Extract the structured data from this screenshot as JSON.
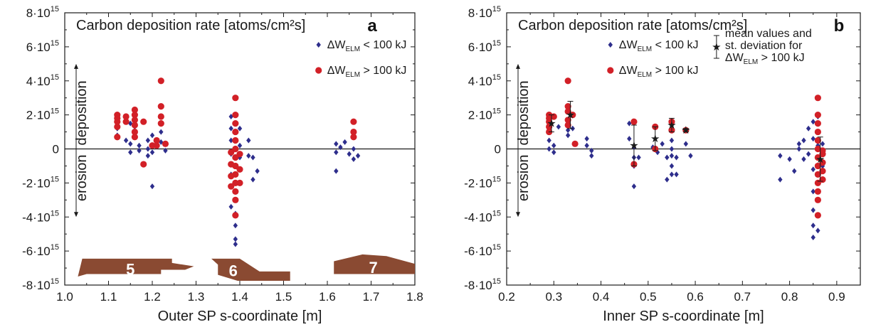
{
  "colors": {
    "blue": "#2e2e8c",
    "red": "#d22027",
    "tile": "#8a4a32",
    "axis": "#1a1a1a"
  },
  "chart_data": [
    {
      "type": "scatter",
      "panel_label": "a",
      "title": "Carbon deposition rate [atoms/cm²s]",
      "xlabel": "Outer SP s-coordinate [m]",
      "xlim": [
        1.0,
        1.8
      ],
      "ylim": [
        -8,
        8
      ],
      "y_unit_note": "y values in units of 10^15",
      "xticks": [
        "1.0",
        "1.1",
        "1.2",
        "1.3",
        "1.4",
        "1.5",
        "1.6",
        "1.7",
        "1.8"
      ],
      "yticks": [
        "-8·10",
        "-6·10",
        "-4·10",
        "-2·10",
        "0",
        "2·10",
        "4·10",
        "6·10",
        "8·10"
      ],
      "ytick_values": [
        -8,
        -6,
        -4,
        -2,
        0,
        2,
        4,
        6,
        8
      ],
      "arrow_labels": {
        "up": "deposition",
        "down": "erosion"
      },
      "tile_labels": [
        "5",
        "6",
        "7"
      ],
      "series": [
        {
          "name": "ΔW_ELM < 100 kJ",
          "legend_main": "ΔW",
          "legend_sub": "ELM",
          "legend_rest": " < 100 kJ",
          "color": "blue",
          "marker": "diamond",
          "points": [
            [
              1.12,
              0.8
            ],
            [
              1.12,
              1.2
            ],
            [
              1.12,
              1.7
            ],
            [
              1.14,
              0.5
            ],
            [
              1.15,
              1.5
            ],
            [
              1.15,
              0.3
            ],
            [
              1.15,
              -0.2
            ],
            [
              1.16,
              1.3
            ],
            [
              1.16,
              0.9
            ],
            [
              1.17,
              0.2
            ],
            [
              1.17,
              -0.1
            ],
            [
              1.18,
              1.6
            ],
            [
              1.19,
              0.5
            ],
            [
              1.19,
              0.0
            ],
            [
              1.19,
              -0.4
            ],
            [
              1.2,
              0.8
            ],
            [
              1.2,
              -0.2
            ],
            [
              1.2,
              -2.2
            ],
            [
              1.22,
              1.0
            ],
            [
              1.22,
              0.4
            ],
            [
              1.23,
              -0.1
            ],
            [
              1.38,
              1.9
            ],
            [
              1.38,
              1.2
            ],
            [
              1.38,
              0.5
            ],
            [
              1.38,
              -0.3
            ],
            [
              1.38,
              -1.5
            ],
            [
              1.38,
              -3.4
            ],
            [
              1.39,
              -1.0
            ],
            [
              1.39,
              -2.5
            ],
            [
              1.39,
              -3.8
            ],
            [
              1.39,
              -4.5
            ],
            [
              1.39,
              -5.3
            ],
            [
              1.39,
              -5.6
            ],
            [
              1.4,
              1.2
            ],
            [
              1.4,
              0.2
            ],
            [
              1.4,
              -0.5
            ],
            [
              1.42,
              0.5
            ],
            [
              1.42,
              -0.4
            ],
            [
              1.43,
              -0.5
            ],
            [
              1.44,
              -1.3
            ],
            [
              1.43,
              -1.8
            ],
            [
              1.62,
              0.3
            ],
            [
              1.62,
              -0.2
            ],
            [
              1.62,
              -1.3
            ],
            [
              1.63,
              0.1
            ],
            [
              1.64,
              0.4
            ],
            [
              1.65,
              -0.3
            ],
            [
              1.66,
              -0.6
            ],
            [
              1.66,
              0.0
            ],
            [
              1.67,
              -0.4
            ]
          ]
        },
        {
          "name": "ΔW_ELM > 100 kJ",
          "legend_main": "ΔW",
          "legend_sub": "ELM",
          "legend_rest": " > 100 kJ",
          "color": "red",
          "marker": "circle",
          "points": [
            [
              1.12,
              2.0
            ],
            [
              1.12,
              1.8
            ],
            [
              1.12,
              1.6
            ],
            [
              1.12,
              1.3
            ],
            [
              1.12,
              0.7
            ],
            [
              1.14,
              1.9
            ],
            [
              1.14,
              1.6
            ],
            [
              1.16,
              2.3
            ],
            [
              1.16,
              2.0
            ],
            [
              1.16,
              1.7
            ],
            [
              1.16,
              1.4
            ],
            [
              1.16,
              1.0
            ],
            [
              1.16,
              0.7
            ],
            [
              1.18,
              1.6
            ],
            [
              1.18,
              -0.9
            ],
            [
              1.2,
              0.2
            ],
            [
              1.21,
              0.5
            ],
            [
              1.21,
              0.2
            ],
            [
              1.22,
              4.0
            ],
            [
              1.22,
              2.5
            ],
            [
              1.22,
              1.9
            ],
            [
              1.22,
              1.5
            ],
            [
              1.23,
              0.3
            ],
            [
              1.39,
              3.0
            ],
            [
              1.39,
              2.0
            ],
            [
              1.39,
              1.5
            ],
            [
              1.39,
              1.0
            ],
            [
              1.39,
              0.5
            ],
            [
              1.39,
              0.0
            ],
            [
              1.39,
              -0.5
            ],
            [
              1.39,
              -1.0
            ],
            [
              1.39,
              -1.5
            ],
            [
              1.39,
              -2.0
            ],
            [
              1.39,
              -2.5
            ],
            [
              1.39,
              -3.0
            ],
            [
              1.39,
              -3.9
            ],
            [
              1.38,
              -0.2
            ],
            [
              1.38,
              -0.9
            ],
            [
              1.38,
              -1.6
            ],
            [
              1.38,
              -2.2
            ],
            [
              1.4,
              -0.3
            ],
            [
              1.4,
              -1.2
            ],
            [
              1.4,
              -2.0
            ],
            [
              1.66,
              1.6
            ],
            [
              1.66,
              1.0
            ],
            [
              1.66,
              0.7
            ]
          ]
        }
      ]
    },
    {
      "type": "scatter",
      "panel_label": "b",
      "title": "Carbon deposition rate [atoms/cm²s]",
      "xlabel": "Inner SP s-coordinate [m]",
      "xlim": [
        0.2,
        0.95
      ],
      "ylim": [
        -8,
        8
      ],
      "y_unit_note": "y values in units of 10^15",
      "xticks": [
        "0.2",
        "0.3",
        "0.4",
        "0.5",
        "0.6",
        "0.7",
        "0.8",
        "0.9"
      ],
      "yticks": [
        "-8·10",
        "-6·10",
        "-4·10",
        "-2·10",
        "0",
        "2·10",
        "4·10",
        "6·10",
        "8·10"
      ],
      "ytick_values": [
        -8,
        -6,
        -4,
        -2,
        0,
        2,
        4,
        6,
        8
      ],
      "arrow_labels": {
        "up": "deposition",
        "down": "erosion"
      },
      "series": [
        {
          "name": "ΔW_ELM < 100 kJ",
          "legend_main": "ΔW",
          "legend_sub": "ELM",
          "legend_rest": " < 100 kJ",
          "color": "blue",
          "marker": "diamond",
          "points": [
            [
              0.29,
              1.0
            ],
            [
              0.29,
              0.5
            ],
            [
              0.29,
              0.0
            ],
            [
              0.3,
              -0.2
            ],
            [
              0.3,
              0.2
            ],
            [
              0.31,
              1.3
            ],
            [
              0.33,
              1.1
            ],
            [
              0.33,
              0.8
            ],
            [
              0.34,
              1.2
            ],
            [
              0.37,
              0.6
            ],
            [
              0.37,
              0.2
            ],
            [
              0.38,
              -0.1
            ],
            [
              0.38,
              -0.4
            ],
            [
              0.46,
              1.5
            ],
            [
              0.46,
              0.6
            ],
            [
              0.47,
              0.1
            ],
            [
              0.47,
              -0.5
            ],
            [
              0.47,
              -1.0
            ],
            [
              0.47,
              -2.2
            ],
            [
              0.48,
              -0.5
            ],
            [
              0.51,
              0.1
            ],
            [
              0.52,
              -0.2
            ],
            [
              0.53,
              0.3
            ],
            [
              0.54,
              -0.5
            ],
            [
              0.54,
              -1.8
            ],
            [
              0.55,
              -1.5
            ],
            [
              0.55,
              -1.0
            ],
            [
              0.55,
              -0.4
            ],
            [
              0.55,
              0.0
            ],
            [
              0.55,
              0.5
            ],
            [
              0.56,
              -1.5
            ],
            [
              0.56,
              -0.5
            ],
            [
              0.58,
              0.3
            ],
            [
              0.59,
              -0.4
            ],
            [
              0.78,
              -0.4
            ],
            [
              0.78,
              -1.8
            ],
            [
              0.8,
              -0.6
            ],
            [
              0.81,
              -1.3
            ],
            [
              0.82,
              0.0
            ],
            [
              0.82,
              0.3
            ],
            [
              0.83,
              0.5
            ],
            [
              0.83,
              -0.6
            ],
            [
              0.84,
              1.2
            ],
            [
              0.84,
              -0.3
            ],
            [
              0.85,
              1.6
            ],
            [
              0.85,
              0.6
            ],
            [
              0.85,
              -1.2
            ],
            [
              0.85,
              -2.5
            ],
            [
              0.85,
              -3.6
            ],
            [
              0.85,
              -4.5
            ],
            [
              0.85,
              -5.2
            ],
            [
              0.86,
              1.9
            ],
            [
              0.86,
              0.2
            ],
            [
              0.86,
              -1.0
            ],
            [
              0.86,
              -3.0
            ],
            [
              0.86,
              -4.8
            ],
            [
              0.87,
              0.3
            ],
            [
              0.87,
              -1.0
            ]
          ]
        },
        {
          "name": "ΔW_ELM > 100 kJ",
          "legend_main": "ΔW",
          "legend_sub": "ELM",
          "legend_rest": " > 100 kJ",
          "color": "red",
          "marker": "circle",
          "points": [
            [
              0.29,
              2.0
            ],
            [
              0.29,
              1.8
            ],
            [
              0.29,
              1.6
            ],
            [
              0.29,
              1.3
            ],
            [
              0.29,
              1.0
            ],
            [
              0.3,
              1.9
            ],
            [
              0.33,
              4.0
            ],
            [
              0.33,
              2.5
            ],
            [
              0.33,
              2.2
            ],
            [
              0.33,
              1.7
            ],
            [
              0.33,
              1.4
            ],
            [
              0.34,
              2.0
            ],
            [
              0.345,
              0.3
            ],
            [
              0.47,
              1.6
            ],
            [
              0.47,
              -0.9
            ],
            [
              0.515,
              1.3
            ],
            [
              0.515,
              0.0
            ],
            [
              0.55,
              1.6
            ],
            [
              0.55,
              1.1
            ],
            [
              0.58,
              1.1
            ],
            [
              0.86,
              3.0
            ],
            [
              0.86,
              2.0
            ],
            [
              0.86,
              1.5
            ],
            [
              0.86,
              1.0
            ],
            [
              0.86,
              0.5
            ],
            [
              0.86,
              0.0
            ],
            [
              0.86,
              -0.5
            ],
            [
              0.86,
              -1.0
            ],
            [
              0.86,
              -1.5
            ],
            [
              0.86,
              -2.0
            ],
            [
              0.86,
              -2.5
            ],
            [
              0.86,
              -3.0
            ],
            [
              0.86,
              -3.9
            ],
            [
              0.87,
              -0.3
            ],
            [
              0.87,
              -0.8
            ],
            [
              0.87,
              -1.3
            ],
            [
              0.87,
              -1.8
            ],
            [
              0.87,
              -0.1
            ]
          ]
        },
        {
          "name": "mean values and st. deviation for ΔW_ELM > 100 kJ",
          "legend_lines": [
            "mean values and",
            "st. deviation for"
          ],
          "legend_main": "ΔW",
          "legend_sub": "ELM",
          "legend_rest": " > 100 kJ",
          "color": "axis",
          "marker": "star",
          "points": [
            [
              0.295,
              1.5,
              0.5
            ],
            [
              0.335,
              2.0,
              0.8
            ],
            [
              0.47,
              0.2,
              1.2
            ],
            [
              0.515,
              0.6,
              0.7
            ],
            [
              0.55,
              1.4,
              0.4
            ],
            [
              0.58,
              1.1,
              0.1
            ],
            [
              0.865,
              -0.6,
              1.3
            ]
          ]
        }
      ]
    }
  ]
}
